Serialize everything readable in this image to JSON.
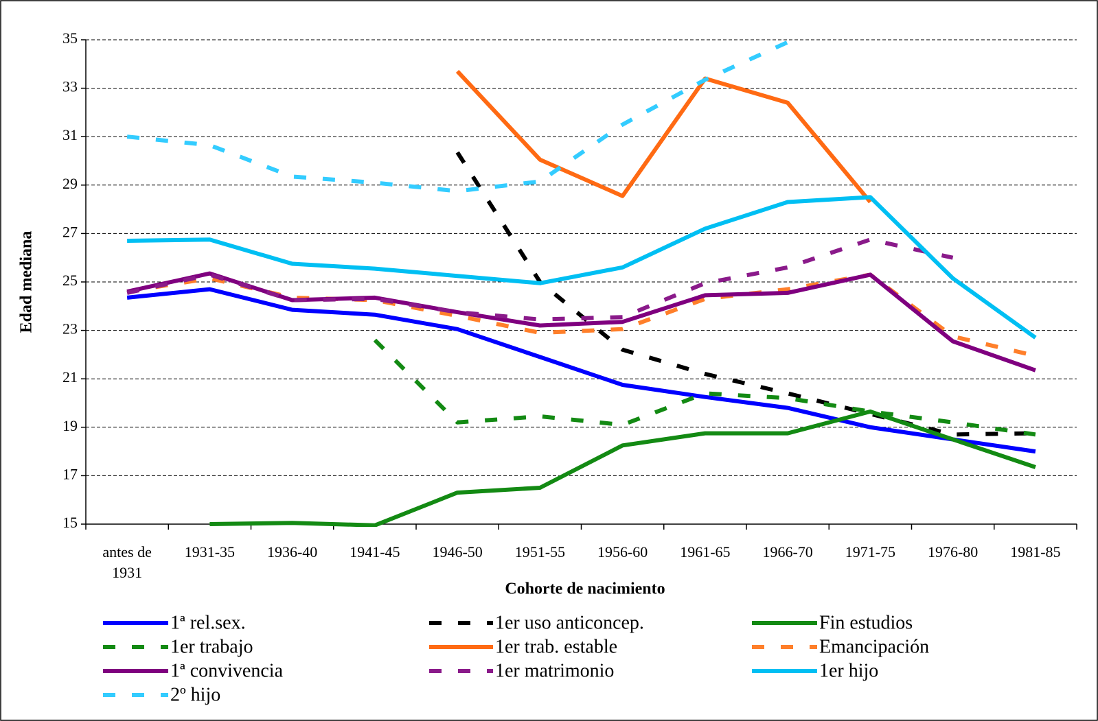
{
  "chart_data": {
    "type": "line",
    "x_label": "Cohorte de nacimiento",
    "y_label": "Edad mediana",
    "categories": [
      "antes de 1931",
      "1931-35",
      "1936-40",
      "1941-45",
      "1946-50",
      "1951-55",
      "1956-60",
      "1961-65",
      "1966-70",
      "1971-75",
      "1976-80",
      "1981-85"
    ],
    "ylim": [
      15,
      35
    ],
    "yticks": [
      15,
      17,
      19,
      21,
      23,
      25,
      27,
      29,
      31,
      33,
      35
    ],
    "grid": true,
    "series": [
      {
        "name": "1ª rel.sex.",
        "color": "#0000ff",
        "dashed": false,
        "values": [
          24.35,
          24.7,
          23.85,
          23.65,
          23.05,
          21.9,
          20.75,
          20.25,
          19.8,
          19.0,
          18.5,
          18.0
        ]
      },
      {
        "name": "1er uso anticoncep.",
        "color": "#000000",
        "dashed": true,
        "values": [
          null,
          null,
          null,
          null,
          30.35,
          25.0,
          22.2,
          21.2,
          20.4,
          19.55,
          18.7,
          18.75
        ]
      },
      {
        "name": "Fin estudios",
        "color": "#138a13",
        "dashed": false,
        "values": [
          null,
          15.0,
          15.05,
          14.95,
          16.3,
          16.5,
          18.25,
          18.75,
          18.75,
          19.65,
          18.5,
          17.35
        ]
      },
      {
        "name": "1er trabajo",
        "color": "#138a13",
        "dashed": true,
        "values": [
          null,
          null,
          null,
          22.6,
          19.2,
          19.45,
          19.1,
          20.4,
          20.2,
          19.65,
          19.2,
          18.7
        ]
      },
      {
        "name": "1er trab. estable",
        "color": "#ff6a13",
        "dashed": false,
        "values": [
          null,
          null,
          null,
          null,
          33.7,
          30.05,
          28.55,
          33.4,
          32.4,
          28.3,
          null,
          null
        ]
      },
      {
        "name": "Emancipación",
        "color": "#ff7f2a",
        "dashed": true,
        "values": [
          24.6,
          25.15,
          24.35,
          24.25,
          23.6,
          22.9,
          23.05,
          24.3,
          24.7,
          25.3,
          22.75,
          21.95
        ]
      },
      {
        "name": "1ª convivencia",
        "color": "#7f007f",
        "dashed": false,
        "values": [
          24.6,
          25.35,
          24.25,
          24.35,
          23.75,
          23.2,
          23.35,
          24.45,
          24.55,
          25.3,
          22.55,
          21.35
        ]
      },
      {
        "name": "1er matrimonio",
        "color": "#8a1a8a",
        "dashed": true,
        "values": [
          24.55,
          25.3,
          24.25,
          24.3,
          23.75,
          23.45,
          23.55,
          24.95,
          25.6,
          26.75,
          26.0,
          null
        ]
      },
      {
        "name": "1er hijo",
        "color": "#00bff3",
        "dashed": false,
        "values": [
          26.7,
          26.75,
          25.75,
          25.55,
          25.25,
          24.95,
          25.6,
          27.2,
          28.3,
          28.5,
          25.15,
          22.7
        ]
      },
      {
        "name": "2º hijo",
        "color": "#33ccff",
        "dashed": true,
        "values": [
          31.0,
          30.65,
          29.35,
          29.1,
          28.75,
          29.15,
          31.5,
          33.35,
          34.9,
          null,
          null,
          null
        ]
      }
    ]
  }
}
